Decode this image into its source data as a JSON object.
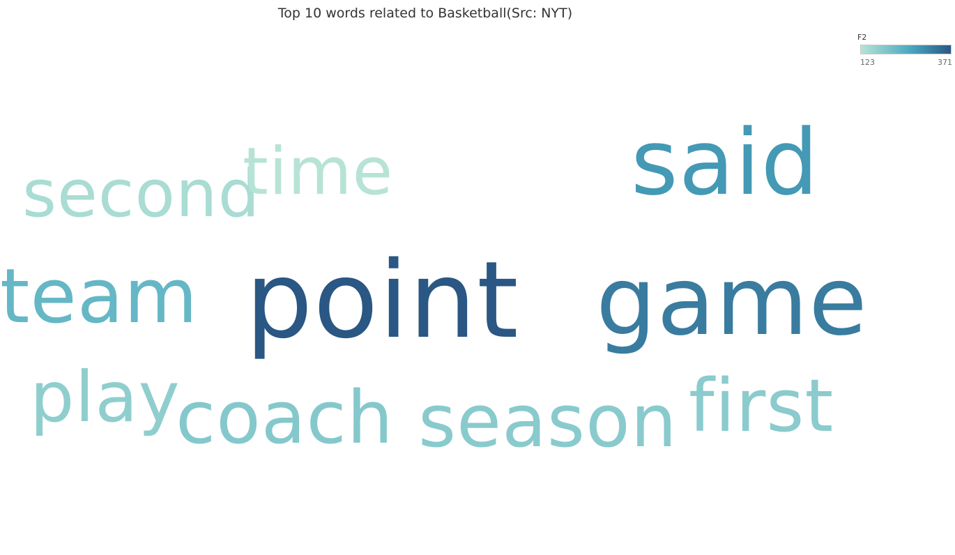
{
  "title": "Top 10 words related to Basketball(Src: NYT)",
  "legend": {
    "title": "F2",
    "min_label": "123",
    "max_label": "371",
    "color_low": "#b7e3d6",
    "color_mid": "#4aa8c0",
    "color_high": "#2a5783"
  },
  "chart_data": {
    "type": "wordcloud",
    "title": "Top 10 words related to Basketball(Src: NYT)",
    "color_measure": "F2",
    "color_range": [
      123,
      371
    ],
    "words": [
      {
        "text": "point",
        "value": 371
      },
      {
        "text": "game",
        "value": 320
      },
      {
        "text": "said",
        "value": 280
      },
      {
        "text": "team",
        "value": 225
      },
      {
        "text": "coach",
        "value": 185
      },
      {
        "text": "season",
        "value": 180
      },
      {
        "text": "first",
        "value": 178
      },
      {
        "text": "play",
        "value": 172
      },
      {
        "text": "second",
        "value": 140
      },
      {
        "text": "time",
        "value": 123
      }
    ]
  }
}
